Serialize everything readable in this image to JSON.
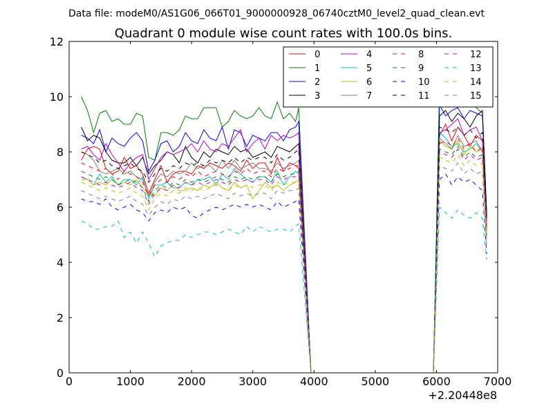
{
  "header": {
    "file_label": "Data file: modeM0/AS1G06_066T01_9000000928_06740cztM0_level2_quad_clean.evt"
  },
  "chart_data": {
    "type": "line",
    "title": "Quadrant 0 module wise count rates with 100.0s bins.",
    "xlabel": "",
    "ylabel": "",
    "x_offset_label": "+2.20448e8",
    "xlim": [
      0,
      7000
    ],
    "ylim": [
      0,
      12
    ],
    "x_ticks": [
      0,
      1000,
      2000,
      3000,
      4000,
      5000,
      6000,
      7000
    ],
    "y_ticks": [
      0,
      2,
      4,
      6,
      8,
      10,
      12
    ],
    "grid": false,
    "legend_placement": "top-right",
    "legend_columns": 4,
    "x": [
      200,
      300,
      400,
      500,
      600,
      700,
      800,
      900,
      1000,
      1100,
      1200,
      1300,
      1400,
      1500,
      1600,
      1700,
      1800,
      1900,
      2000,
      2100,
      2200,
      2300,
      2400,
      2500,
      2600,
      2700,
      2800,
      2900,
      3000,
      3100,
      3200,
      3300,
      3400,
      3500,
      3600,
      3700,
      3750,
      3950,
      4000,
      5000,
      5950,
      6050,
      6150,
      6250,
      6350,
      6450,
      6550,
      6650,
      6750,
      6820
    ],
    "series": [
      {
        "name": "0",
        "color": "#ff0000",
        "dash": "solid",
        "values": [
          7.7,
          8.1,
          8.2,
          8.1,
          7.4,
          7.2,
          7.3,
          7.8,
          7.4,
          7.5,
          7.2,
          6.5,
          7.0,
          7.5,
          6.9,
          7.2,
          7.3,
          7.3,
          7.2,
          7.5,
          7.4,
          7.6,
          7.5,
          7.4,
          7.6,
          7.5,
          7.3,
          7.7,
          7.4,
          7.6,
          7.6,
          7.2,
          7.8,
          7.3,
          7.6,
          7.5,
          7.4,
          0,
          0,
          0,
          0,
          8.6,
          9.0,
          8.4,
          8.9,
          8.6,
          8.2,
          8.6,
          8.4,
          5.5
        ]
      },
      {
        "name": "1",
        "color": "#008000",
        "dash": "solid",
        "values": [
          10.0,
          9.5,
          8.7,
          9.4,
          9.5,
          9.1,
          9.2,
          9.0,
          9.0,
          9.4,
          9.3,
          7.8,
          7.7,
          8.7,
          8.7,
          8.6,
          8.8,
          9.3,
          9.2,
          9.2,
          9.6,
          9.6,
          9.6,
          8.9,
          9.1,
          9.5,
          9.3,
          9.2,
          9.3,
          9.6,
          9.3,
          9.2,
          9.8,
          9.2,
          9.4,
          9.1,
          9.6,
          0,
          0,
          0,
          0,
          10.4,
          10.3,
          10.0,
          10.2,
          10.3,
          9.8,
          9.6,
          9.4,
          5.8
        ]
      },
      {
        "name": "2",
        "color": "#0000ff",
        "dash": "solid",
        "values": [
          8.6,
          8.5,
          8.3,
          8.8,
          8.0,
          8.5,
          8.3,
          8.2,
          8.5,
          8.7,
          8.4,
          7.3,
          7.7,
          8.3,
          8.4,
          8.0,
          8.2,
          8.7,
          8.4,
          8.3,
          8.8,
          8.5,
          8.4,
          8.9,
          8.1,
          8.8,
          8.7,
          8.2,
          8.6,
          8.5,
          8.4,
          8.7,
          8.7,
          8.4,
          8.8,
          8.9,
          9.1,
          0,
          0,
          0,
          0,
          9.7,
          9.3,
          9.5,
          9.6,
          9.2,
          9.5,
          9.4,
          9.3,
          5.6
        ]
      },
      {
        "name": "3",
        "color": "#000000",
        "dash": "solid",
        "values": [
          8.9,
          8.4,
          8.6,
          8.5,
          8.0,
          7.7,
          7.6,
          7.6,
          7.8,
          7.5,
          7.8,
          7.2,
          7.5,
          7.7,
          8.0,
          7.9,
          7.6,
          8.2,
          7.8,
          7.6,
          8.0,
          7.8,
          8.1,
          8.0,
          7.9,
          8.2,
          8.0,
          8.1,
          7.8,
          7.9,
          8.0,
          7.8,
          8.2,
          8.1,
          8.0,
          8.2,
          8.3,
          0,
          0,
          0,
          0,
          9.3,
          9.5,
          9.1,
          9.4,
          9.2,
          8.9,
          9.3,
          9.5,
          5.7
        ]
      },
      {
        "name": "4",
        "color": "#bf00bf",
        "dash": "solid",
        "values": [
          8.1,
          8.2,
          7.9,
          7.7,
          8.3,
          7.9,
          7.6,
          7.3,
          7.6,
          7.8,
          7.9,
          7.0,
          7.4,
          7.8,
          8.0,
          7.9,
          8.0,
          8.1,
          8.3,
          8.0,
          8.4,
          8.1,
          8.0,
          8.3,
          8.2,
          8.5,
          8.8,
          8.0,
          8.3,
          8.5,
          8.1,
          8.6,
          8.4,
          8.6,
          8.5,
          8.6,
          8.7,
          0,
          0,
          0,
          0,
          8.7,
          8.8,
          9.0,
          9.2,
          8.6,
          8.8,
          8.9,
          8.4,
          5.4
        ]
      },
      {
        "name": "5",
        "color": "#00bfbf",
        "dash": "solid",
        "values": [
          7.1,
          7.0,
          6.8,
          7.2,
          6.9,
          7.1,
          6.8,
          7.0,
          7.0,
          6.8,
          7.1,
          6.3,
          6.8,
          6.8,
          6.9,
          6.7,
          6.7,
          6.9,
          6.8,
          7.0,
          7.0,
          7.1,
          6.8,
          7.2,
          7.0,
          7.4,
          7.2,
          7.0,
          6.9,
          7.1,
          7.1,
          6.9,
          7.3,
          6.8,
          7.1,
          7.3,
          7.2,
          0,
          0,
          0,
          0,
          8.7,
          8.5,
          8.2,
          8.3,
          8.0,
          8.1,
          8.3,
          8.0,
          5.1
        ]
      },
      {
        "name": "6",
        "color": "#bfbf00",
        "dash": "solid",
        "values": [
          7.0,
          7.0,
          6.8,
          6.9,
          6.8,
          7.0,
          6.8,
          6.9,
          6.8,
          7.0,
          6.7,
          6.5,
          6.4,
          6.7,
          6.6,
          6.8,
          6.6,
          6.6,
          6.7,
          6.6,
          6.8,
          6.7,
          6.9,
          6.7,
          6.6,
          6.9,
          6.7,
          6.8,
          6.3,
          6.6,
          6.9,
          6.7,
          6.8,
          6.6,
          6.8,
          6.9,
          7.0,
          0,
          0,
          0,
          0,
          8.4,
          8.2,
          8.1,
          8.4,
          7.9,
          8.2,
          8.0,
          8.1,
          5.0
        ]
      },
      {
        "name": "7",
        "color": "#808080",
        "dash": "solid",
        "values": [
          8.0,
          7.9,
          7.7,
          7.3,
          7.2,
          7.3,
          7.4,
          7.2,
          7.3,
          7.1,
          7.0,
          6.4,
          6.9,
          7.2,
          7.1,
          7.3,
          7.2,
          7.3,
          7.6,
          7.4,
          7.5,
          7.5,
          7.3,
          7.7,
          7.4,
          7.7,
          7.4,
          7.5,
          7.6,
          7.4,
          7.4,
          7.3,
          7.6,
          7.4,
          7.5,
          7.6,
          7.7,
          0,
          0,
          0,
          0,
          8.5,
          8.3,
          8.1,
          8.6,
          8.2,
          8.3,
          8.4,
          8.0,
          5.3
        ]
      },
      {
        "name": "8",
        "color": "#ff0000",
        "dash": "dashed",
        "values": [
          7.6,
          7.5,
          7.4,
          7.3,
          7.4,
          7.2,
          7.0,
          7.3,
          7.2,
          7.1,
          6.9,
          6.4,
          6.8,
          7.0,
          6.9,
          7.1,
          7.0,
          7.2,
          7.1,
          7.3,
          7.1,
          7.2,
          7.3,
          7.2,
          7.1,
          7.3,
          7.2,
          7.4,
          7.2,
          7.3,
          7.3,
          7.1,
          7.4,
          7.3,
          7.4,
          7.5,
          7.5,
          0,
          0,
          0,
          0,
          8.3,
          8.4,
          8.2,
          8.5,
          8.1,
          8.3,
          8.0,
          8.2,
          5.2
        ]
      },
      {
        "name": "9",
        "color": "#008000",
        "dash": "dashed",
        "values": [
          7.3,
          7.2,
          7.1,
          7.0,
          7.1,
          7.0,
          6.8,
          6.9,
          7.0,
          6.9,
          6.7,
          6.2,
          6.6,
          6.8,
          6.7,
          6.9,
          6.8,
          7.0,
          6.9,
          7.0,
          6.9,
          7.0,
          7.1,
          7.0,
          6.9,
          7.1,
          7.0,
          7.1,
          7.0,
          7.1,
          7.1,
          6.9,
          7.2,
          7.1,
          7.2,
          7.2,
          7.3,
          0,
          0,
          0,
          0,
          8.1,
          8.0,
          7.9,
          8.2,
          7.8,
          8.0,
          7.8,
          7.9,
          5.0
        ]
      },
      {
        "name": "10",
        "color": "#0000ff",
        "dash": "dashed",
        "values": [
          6.3,
          6.2,
          6.2,
          6.1,
          6.3,
          6.0,
          5.9,
          6.0,
          6.1,
          5.9,
          5.8,
          5.5,
          5.8,
          5.9,
          5.8,
          6.0,
          5.9,
          6.0,
          5.7,
          5.6,
          5.8,
          5.9,
          6.0,
          5.9,
          6.0,
          6.1,
          6.0,
          6.1,
          6.0,
          6.1,
          6.0,
          5.9,
          6.2,
          6.0,
          6.1,
          6.2,
          6.3,
          0,
          0,
          0,
          0,
          7.0,
          7.2,
          6.8,
          7.1,
          6.9,
          7.0,
          6.8,
          6.6,
          4.3
        ]
      },
      {
        "name": "11",
        "color": "#000000",
        "dash": "dashed",
        "values": [
          8.0,
          7.9,
          7.8,
          7.6,
          7.7,
          7.5,
          7.4,
          7.5,
          7.6,
          7.4,
          7.3,
          6.9,
          7.2,
          7.4,
          7.3,
          7.5,
          7.4,
          7.6,
          7.5,
          7.6,
          7.5,
          7.7,
          7.6,
          7.7,
          7.6,
          7.8,
          7.6,
          7.8,
          7.7,
          7.8,
          7.8,
          7.6,
          7.9,
          7.7,
          7.8,
          8.0,
          8.1,
          0,
          0,
          0,
          0,
          8.9,
          8.8,
          8.7,
          8.9,
          8.6,
          8.8,
          8.5,
          8.7,
          5.6
        ]
      },
      {
        "name": "12",
        "color": "#bf00bf",
        "dash": "dashed",
        "values": [
          7.1,
          7.0,
          6.9,
          6.8,
          6.9,
          6.8,
          6.7,
          6.8,
          6.9,
          6.7,
          6.6,
          6.1,
          6.5,
          6.7,
          6.6,
          6.8,
          6.7,
          6.9,
          6.8,
          6.9,
          6.8,
          6.9,
          7.0,
          6.9,
          6.8,
          7.0,
          6.9,
          7.0,
          6.9,
          7.0,
          7.0,
          6.8,
          7.1,
          7.0,
          7.1,
          7.1,
          7.2,
          0,
          0,
          0,
          0,
          8.0,
          7.9,
          7.8,
          8.1,
          7.7,
          7.9,
          7.7,
          7.8,
          4.9
        ]
      },
      {
        "name": "13",
        "color": "#00bfbf",
        "dash": "dashed",
        "values": [
          5.5,
          5.4,
          5.2,
          5.2,
          5.3,
          5.3,
          5.5,
          4.9,
          5.1,
          4.7,
          5.1,
          4.7,
          4.2,
          4.6,
          4.7,
          4.8,
          4.8,
          5.0,
          4.9,
          5.0,
          5.1,
          5.1,
          5.0,
          5.1,
          5.2,
          5.1,
          5.0,
          5.3,
          5.1,
          5.3,
          5.2,
          5.1,
          5.2,
          5.2,
          5.1,
          5.3,
          5.4,
          0,
          0,
          0,
          0,
          6.0,
          5.8,
          5.6,
          5.9,
          5.7,
          5.6,
          5.8,
          5.6,
          4.1
        ]
      },
      {
        "name": "14",
        "color": "#bfbf00",
        "dash": "dashed",
        "values": [
          6.9,
          6.8,
          6.7,
          6.6,
          6.7,
          6.6,
          6.5,
          6.6,
          6.7,
          6.5,
          6.4,
          5.9,
          6.3,
          6.5,
          6.4,
          6.6,
          6.5,
          6.7,
          6.6,
          6.7,
          6.6,
          6.7,
          6.8,
          6.7,
          6.6,
          6.8,
          6.7,
          6.8,
          6.7,
          6.8,
          6.8,
          6.6,
          6.9,
          6.8,
          6.9,
          6.9,
          7.0,
          0,
          0,
          0,
          0,
          7.8,
          7.7,
          7.6,
          7.9,
          7.5,
          7.7,
          7.5,
          7.6,
          4.8
        ]
      },
      {
        "name": "15",
        "color": "#808080",
        "dash": "dashed",
        "values": [
          6.6,
          6.5,
          6.4,
          6.3,
          6.4,
          6.3,
          6.2,
          6.3,
          6.4,
          6.2,
          6.1,
          5.7,
          6.0,
          6.2,
          6.1,
          6.3,
          6.2,
          6.4,
          6.3,
          6.4,
          6.3,
          6.4,
          6.5,
          6.4,
          6.3,
          6.5,
          6.4,
          6.5,
          6.4,
          6.5,
          6.5,
          6.3,
          6.6,
          6.5,
          6.6,
          6.6,
          6.7,
          0,
          0,
          0,
          0,
          7.5,
          7.4,
          7.3,
          7.6,
          7.2,
          7.4,
          7.2,
          7.3,
          4.6
        ]
      }
    ]
  }
}
